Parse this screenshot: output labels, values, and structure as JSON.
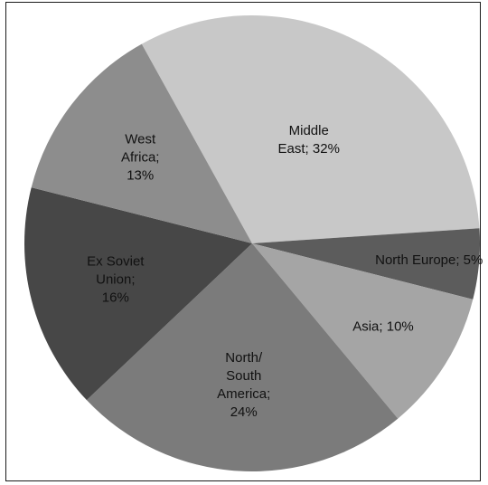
{
  "chart_data": {
    "type": "pie",
    "title": "",
    "slices": [
      {
        "lines": [
          "Middle",
          "East; 32%"
        ],
        "value": 32,
        "color": "#c8c8c8"
      },
      {
        "lines": [
          "North Europe; 5%"
        ],
        "value": 5,
        "color": "#5c5c5c"
      },
      {
        "lines": [
          "Asia; 10%"
        ],
        "value": 10,
        "color": "#a5a5a5"
      },
      {
        "lines": [
          "North/",
          "South",
          "America;",
          "24%"
        ],
        "value": 24,
        "color": "#7b7b7b"
      },
      {
        "lines": [
          "Ex Soviet",
          "Union;",
          "16%"
        ],
        "value": 16,
        "color": "#474747"
      },
      {
        "lines": [
          "West",
          "Africa;",
          "13%"
        ],
        "value": 13,
        "color": "#8d8d8d"
      }
    ],
    "legend": "none",
    "data_labels": "inside"
  }
}
